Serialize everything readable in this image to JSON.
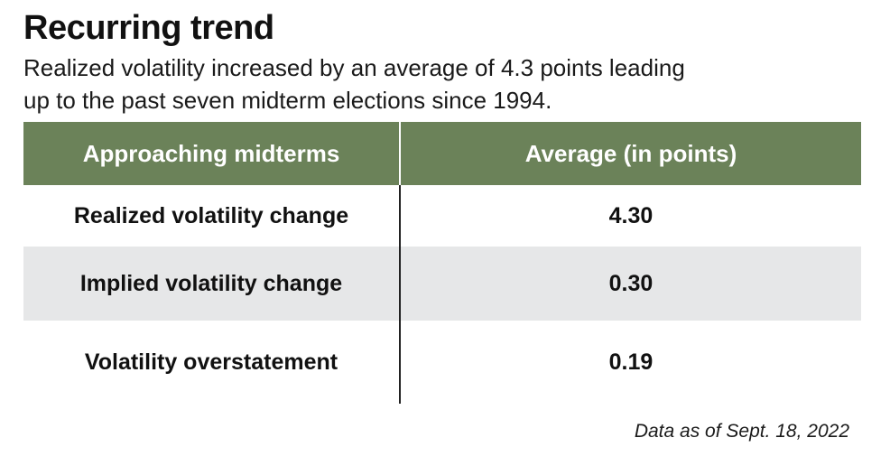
{
  "title": "Recurring trend",
  "subtitle_lines": [
    "Realized volatility increased by an average of 4.3 points leading",
    "up to the  past seven midterm elections since 1994."
  ],
  "chart_data": {
    "type": "table",
    "title": "Recurring trend",
    "subtitle": "Realized volatility increased by an average of 4.3 points leading up to the  past seven midterm elections since 1994.",
    "columns": [
      "Approaching midterms",
      "Average (in points)"
    ],
    "rows": [
      [
        "Realized volatility change",
        "4.30"
      ],
      [
        "Implied volatility change",
        "0.30"
      ],
      [
        "Volatility overstatement",
        "0.19"
      ]
    ],
    "values": [
      4.3,
      0.3,
      0.19
    ],
    "header_color": "#6b8259",
    "stripe_color": "#e6e7e8"
  },
  "footnote": "Data as of Sept. 18, 2022"
}
